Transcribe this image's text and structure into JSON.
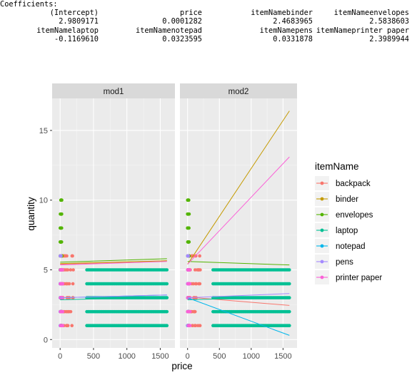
{
  "console": {
    "header": "Coefficients:",
    "rows": [
      [
        {
          "label": "(Intercept)",
          "value": "2.9809171"
        },
        {
          "label": "price",
          "value": "0.0001282"
        },
        {
          "label": "itemNamebinder",
          "value": "2.4683965"
        },
        {
          "label": "itemNameenvelopes",
          "value": "2.5838603"
        }
      ],
      [
        {
          "label": "itemNamelaptop",
          "value": "-0.1169610"
        },
        {
          "label": "itemNamenotepad",
          "value": "0.0323595"
        },
        {
          "label": "itemNamepens",
          "value": "0.0331878"
        },
        {
          "label": "itemNameprinter paper",
          "value": "2.3989944"
        }
      ]
    ]
  },
  "chart_data": {
    "type": "scatter",
    "facets": [
      "mod1",
      "mod2"
    ],
    "xlabel": "price",
    "ylabel": "quantity",
    "xlim": [
      -120,
      1720
    ],
    "ylim": [
      -0.6,
      17.3
    ],
    "x_ticks": [
      0,
      500,
      1000,
      1500
    ],
    "y_ticks": [
      0,
      5,
      10,
      15
    ],
    "legend": {
      "title": "itemName",
      "position": "right"
    },
    "panel_background": "#ebebeb",
    "strip_background": "#d9d9d9",
    "grid": true,
    "series": [
      {
        "name": "backpack",
        "color": "#F8766D",
        "points": {
          "x_range": [
            10,
            200
          ],
          "y": [
            1,
            2,
            3,
            4,
            5,
            6
          ]
        },
        "fit": {
          "mod1": [
            [
              0,
              5.4
            ],
            [
              1600,
              5.65
            ]
          ],
          "mod2": [
            [
              0,
              3.05
            ],
            [
              1600,
              2.45
            ]
          ]
        }
      },
      {
        "name": "binder",
        "color": "#C49A00",
        "points": {
          "x_range": [
            0,
            35
          ],
          "y": [
            1,
            2,
            3,
            4,
            5,
            6
          ]
        },
        "fit": {
          "mod1": [
            [
              0,
              5.45
            ],
            [
              1600,
              5.65
            ]
          ],
          "mod2": [
            [
              0,
              5.4
            ],
            [
              1600,
              16.4
            ]
          ]
        }
      },
      {
        "name": "envelopes",
        "color": "#53B400",
        "points": {
          "x_range": [
            0,
            25
          ],
          "y": [
            1,
            2,
            3,
            4,
            5,
            6,
            7,
            8,
            9,
            10
          ]
        },
        "fit": {
          "mod1": [
            [
              0,
              5.55
            ],
            [
              1600,
              5.8
            ]
          ],
          "mod2": [
            [
              0,
              5.6
            ],
            [
              1600,
              5.35
            ]
          ]
        }
      },
      {
        "name": "laptop",
        "color": "#00C094",
        "points": {
          "x_range": [
            400,
            1600
          ],
          "y": [
            1,
            2,
            3,
            4,
            5
          ]
        },
        "fit": {
          "mod1": [
            [
              0,
              2.85
            ],
            [
              1600,
              3.05
            ]
          ],
          "mod2": [
            [
              0,
              2.85
            ],
            [
              1600,
              3.05
            ]
          ]
        }
      },
      {
        "name": "notepad",
        "color": "#00B6EB",
        "points": {
          "x_range": [
            0,
            20
          ],
          "y": [
            1,
            2,
            3,
            4,
            5
          ]
        },
        "fit": {
          "mod1": [
            [
              0,
              3.0
            ],
            [
              1600,
              3.2
            ]
          ],
          "mod2": [
            [
              0,
              3.0
            ],
            [
              1600,
              0.3
            ]
          ]
        }
      },
      {
        "name": "pens",
        "color": "#A58AFF",
        "points": {
          "x_range": [
            0,
            15
          ],
          "y": [
            1,
            2,
            3,
            4,
            5,
            6
          ]
        },
        "fit": {
          "mod1": [
            [
              0,
              3.0
            ],
            [
              1600,
              3.2
            ]
          ],
          "mod2": [
            [
              0,
              3.0
            ],
            [
              1600,
              3.3
            ]
          ]
        }
      },
      {
        "name": "printer paper",
        "color": "#FB61D7",
        "points": {
          "x_range": [
            0,
            40
          ],
          "y": [
            1,
            2,
            3,
            4,
            5
          ]
        },
        "fit": {
          "mod1": [
            [
              0,
              5.35
            ],
            [
              1600,
              5.6
            ]
          ],
          "mod2": [
            [
              0,
              5.4
            ],
            [
              1600,
              13.1
            ]
          ]
        }
      }
    ]
  }
}
